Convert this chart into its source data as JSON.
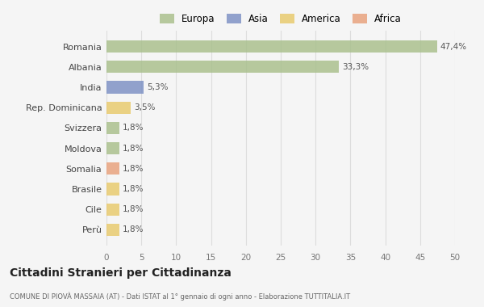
{
  "categories": [
    "Romania",
    "Albania",
    "India",
    "Rep. Dominicana",
    "Svizzera",
    "Moldova",
    "Somalia",
    "Brasile",
    "Cile",
    "Perù"
  ],
  "values": [
    47.4,
    33.3,
    5.3,
    3.5,
    1.8,
    1.8,
    1.8,
    1.8,
    1.8,
    1.8
  ],
  "labels": [
    "47,4%",
    "33,3%",
    "5,3%",
    "3,5%",
    "1,8%",
    "1,8%",
    "1,8%",
    "1,8%",
    "1,8%",
    "1,8%"
  ],
  "colors": [
    "#a8bf8a",
    "#a8bf8a",
    "#7b8fc4",
    "#e8c96a",
    "#a8bf8a",
    "#a8bf8a",
    "#e8a07a",
    "#e8c96a",
    "#e8c96a",
    "#e8c96a"
  ],
  "legend_labels": [
    "Europa",
    "Asia",
    "America",
    "Africa"
  ],
  "legend_colors": [
    "#a8bf8a",
    "#7b8fc4",
    "#e8c96a",
    "#e8a07a"
  ],
  "title": "Cittadini Stranieri per Cittadinanza",
  "subtitle": "COMUNE DI PIOVÀ MASSAIA (AT) - Dati ISTAT al 1° gennaio di ogni anno - Elaborazione TUTTITALIA.IT",
  "xlim": [
    0,
    50
  ],
  "xticks": [
    0,
    5,
    10,
    15,
    20,
    25,
    30,
    35,
    40,
    45,
    50
  ],
  "background_color": "#f5f5f5",
  "grid_color": "#dddddd",
  "bar_height": 0.6
}
